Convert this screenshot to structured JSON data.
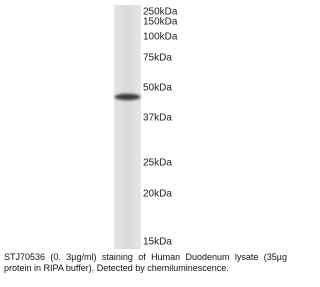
{
  "markers": [
    {
      "label": "250kDa"
    },
    {
      "label": "150kDa"
    },
    {
      "label": "100kDa"
    },
    {
      "label": "75kDa"
    },
    {
      "label": "50kDa"
    },
    {
      "label": "37kDa"
    },
    {
      "label": "25kDa"
    },
    {
      "label": "20kDa"
    },
    {
      "label": "15kDa"
    }
  ],
  "caption": "STJ70536 (0. 3µg/ml) staining of Human Duodenum lysate (35µg protein in RIPA buffer). Detected by chemiluminescence."
}
